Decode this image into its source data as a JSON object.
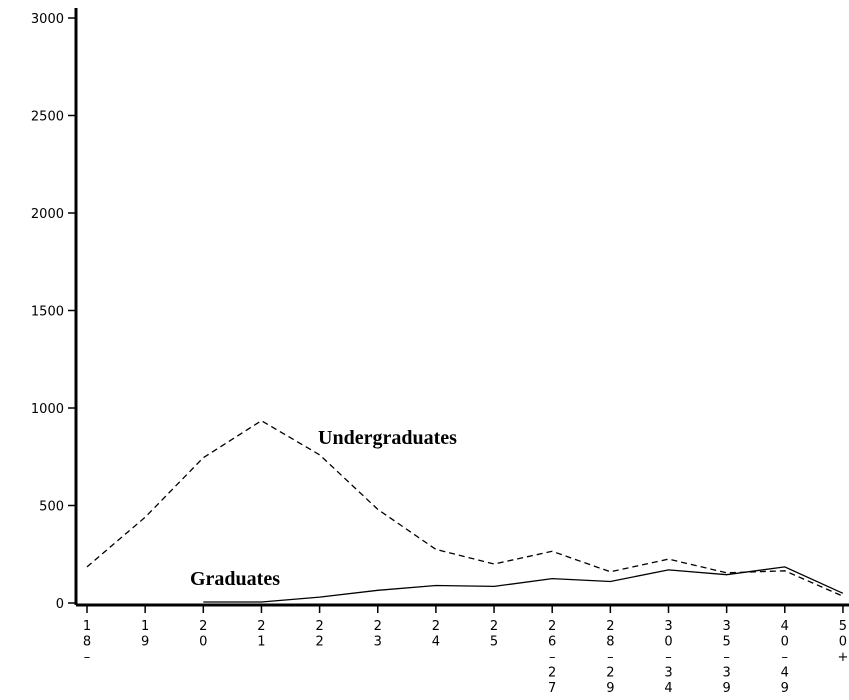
{
  "chart_data": {
    "type": "line",
    "title": "",
    "xlabel": "",
    "ylabel": "",
    "ylim": [
      0,
      3000
    ],
    "y_ticks": [
      "0",
      "500",
      "1000",
      "1500",
      "2000",
      "2500",
      "3000"
    ],
    "categories": [
      "18",
      "19",
      "20",
      "21",
      "22",
      "23",
      "24",
      "25",
      "26–27",
      "28–29",
      "30–34",
      "35–39",
      "40–49",
      "50+"
    ],
    "x_tick_labels": [
      "18–",
      "19",
      "20",
      "21",
      "22",
      "23",
      "24",
      "25",
      "26–27",
      "28–29",
      "30–34",
      "35–39",
      "40–49",
      "50+"
    ],
    "grid": false,
    "series": [
      {
        "name": "Undergraduates",
        "style": "dashed",
        "color": "#000000",
        "values": [
          185,
          440,
          745,
          935,
          760,
          480,
          275,
          200,
          265,
          160,
          225,
          155,
          165,
          35
        ]
      },
      {
        "name": "Graduates",
        "style": "solid",
        "color": "#000000",
        "values": [
          null,
          null,
          5,
          5,
          30,
          65,
          90,
          85,
          125,
          110,
          170,
          145,
          185,
          50
        ]
      }
    ],
    "annotations": [
      {
        "text": "Undergraduates",
        "series": "Undergraduates"
      },
      {
        "text": "Graduates",
        "series": "Graduates"
      }
    ]
  }
}
